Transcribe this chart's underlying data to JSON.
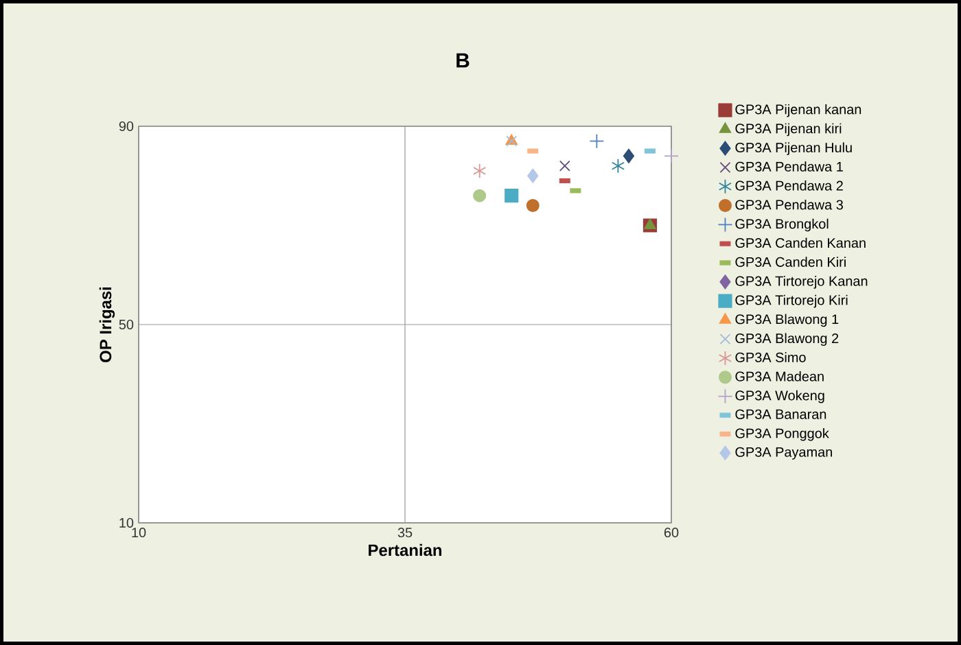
{
  "chart_data": {
    "type": "scatter",
    "title": "B",
    "xlabel": "Pertanian",
    "ylabel": "OP Irigasi",
    "xlim": [
      10,
      60
    ],
    "ylim": [
      10,
      90
    ],
    "xticks": [
      10,
      35,
      60
    ],
    "yticks": [
      10,
      50,
      90
    ],
    "grid": true,
    "legend": "right",
    "series": [
      {
        "name": "GP3A Pijenan kanan",
        "color": "#9b3b38",
        "marker": "square",
        "x": [
          58
        ],
        "values": [
          70
        ]
      },
      {
        "name": "GP3A Pijenan kiri",
        "color": "#77933c",
        "marker": "triangle",
        "x": [
          58
        ],
        "values": [
          70
        ]
      },
      {
        "name": "GP3A Pijenan Hulu",
        "color": "#2c4d75",
        "marker": "diamond",
        "x": [
          56
        ],
        "values": [
          84
        ]
      },
      {
        "name": "GP3A Pendawa 1",
        "color": "#604a7b",
        "marker": "x",
        "x": [
          50
        ],
        "values": [
          82
        ]
      },
      {
        "name": "GP3A Pendawa 2",
        "color": "#31859c",
        "marker": "cross",
        "x": [
          55
        ],
        "values": [
          82
        ]
      },
      {
        "name": "GP3A Pendawa 3",
        "color": "#c0702a",
        "marker": "circle",
        "x": [
          47
        ],
        "values": [
          74
        ]
      },
      {
        "name": "GP3A Brongkol",
        "color": "#4f81bd",
        "marker": "plus",
        "x": [
          53
        ],
        "values": [
          87
        ]
      },
      {
        "name": "GP3A Canden Kanan",
        "color": "#c0504d",
        "x": [
          50
        ],
        "values": [
          79
        ]
      },
      {
        "name": "GP3A Canden Kiri",
        "color": "#9bbb59",
        "x": [
          51
        ],
        "values": [
          77
        ]
      },
      {
        "name": "GP3A Tirtorejo Kanan",
        "color": "#8064a2",
        "marker": "diamond",
        "x": [
          null
        ],
        "values": [
          null
        ]
      },
      {
        "name": "GP3A Tirtorejo Kiri",
        "color": "#4bacc6",
        "marker": "square",
        "x": [
          45
        ],
        "values": [
          76
        ]
      },
      {
        "name": "GP3A Blawong 1",
        "color": "#f79646",
        "marker": "triangle",
        "x": [
          45
        ],
        "values": [
          87
        ]
      },
      {
        "name": "GP3A Blawong 2",
        "color": "#a5b9db",
        "marker": "x",
        "x": [
          45
        ],
        "values": [
          87
        ]
      },
      {
        "name": "GP3A Simo",
        "color": "#d99694",
        "marker": "cross",
        "x": [
          42
        ],
        "values": [
          81
        ]
      },
      {
        "name": "GP3A Madean",
        "color": "#aec98a",
        "marker": "circle",
        "x": [
          42
        ],
        "values": [
          76
        ]
      },
      {
        "name": "GP3A Wokeng",
        "color": "#b3a2c7",
        "marker": "plus",
        "x": [
          60
        ],
        "values": [
          84
        ]
      },
      {
        "name": "GP3A Banaran",
        "color": "#7fc4d8",
        "x": [
          58
        ],
        "values": [
          85
        ]
      },
      {
        "name": "GP3A Ponggok",
        "color": "#f9b48a",
        "x": [
          47
        ],
        "values": [
          85
        ]
      },
      {
        "name": "GP3A Payaman",
        "color": "#b4c7e7",
        "marker": "diamond",
        "x": [
          47
        ],
        "values": [
          80
        ]
      }
    ]
  }
}
